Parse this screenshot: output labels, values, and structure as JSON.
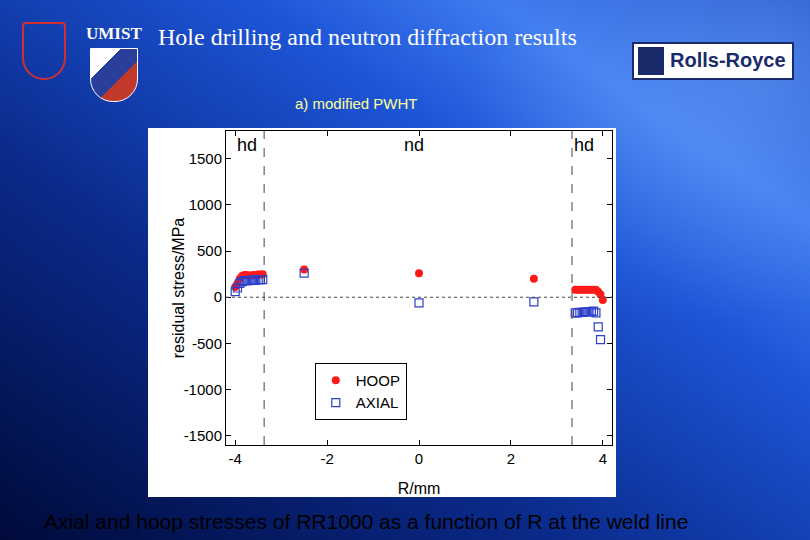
{
  "chart_data": {
    "type": "scatter",
    "title": "Hole drilling and neutron diffraction results",
    "subtitle": "a) modified PWHT",
    "caption": "Axial and hoop stresses of RR1000 as a function of R at the weld line",
    "x_label": "R/mm",
    "y_label": "residual stress/MPa",
    "xlim": [
      -4.2,
      4.2
    ],
    "ylim": [
      -1600,
      1800
    ],
    "xticks": [
      -4,
      -2,
      0,
      2,
      4
    ],
    "yticks": [
      -1500,
      -1000,
      -500,
      0,
      500,
      1000,
      1500
    ],
    "grid": false,
    "legend": "lower center",
    "annotations": [
      {
        "text": "hd",
        "x": -3.75,
        "y": 1650
      },
      {
        "text": "nd",
        "x": -0.1,
        "y": 1650
      },
      {
        "text": "hd",
        "x": 3.6,
        "y": 1650
      }
    ],
    "reference_lines": {
      "x": [
        -3.37,
        3.33
      ],
      "y": [
        0
      ]
    },
    "series": [
      {
        "name": "HOOP",
        "color": "#ff1a1a",
        "marker": "circle",
        "x": [
          -4.0,
          -3.95,
          -3.9,
          -3.85,
          -3.8,
          -3.75,
          -3.7,
          -3.65,
          -3.6,
          -3.55,
          -3.5,
          -3.45,
          -3.4,
          -2.5,
          0,
          2.5,
          3.4,
          3.45,
          3.5,
          3.55,
          3.6,
          3.65,
          3.7,
          3.75,
          3.8,
          3.85,
          3.9,
          3.95,
          4.0
        ],
        "values": [
          110,
          150,
          200,
          230,
          240,
          240,
          235,
          235,
          240,
          240,
          245,
          245,
          250,
          300,
          260,
          200,
          80,
          80,
          80,
          80,
          80,
          80,
          80,
          80,
          80,
          80,
          60,
          30,
          -30
        ]
      },
      {
        "name": "AXIAL",
        "color": "#2d3fc8",
        "marker": "square-open",
        "x": [
          -4.0,
          -3.95,
          -3.9,
          -3.85,
          -3.8,
          -3.75,
          -3.7,
          -3.65,
          -3.6,
          -3.55,
          -3.5,
          -3.45,
          -3.4,
          -2.5,
          0,
          2.5,
          3.4,
          3.45,
          3.5,
          3.55,
          3.6,
          3.65,
          3.7,
          3.75,
          3.8,
          3.85,
          3.9,
          3.95
        ],
        "values": [
          60,
          100,
          150,
          170,
          180,
          180,
          180,
          185,
          185,
          185,
          190,
          190,
          190,
          260,
          -60,
          -50,
          -170,
          -170,
          -165,
          -165,
          -160,
          -160,
          -155,
          -155,
          -150,
          -170,
          -320,
          -460
        ]
      }
    ]
  },
  "logos": [
    "UMIST",
    "Rolls-Royce"
  ]
}
